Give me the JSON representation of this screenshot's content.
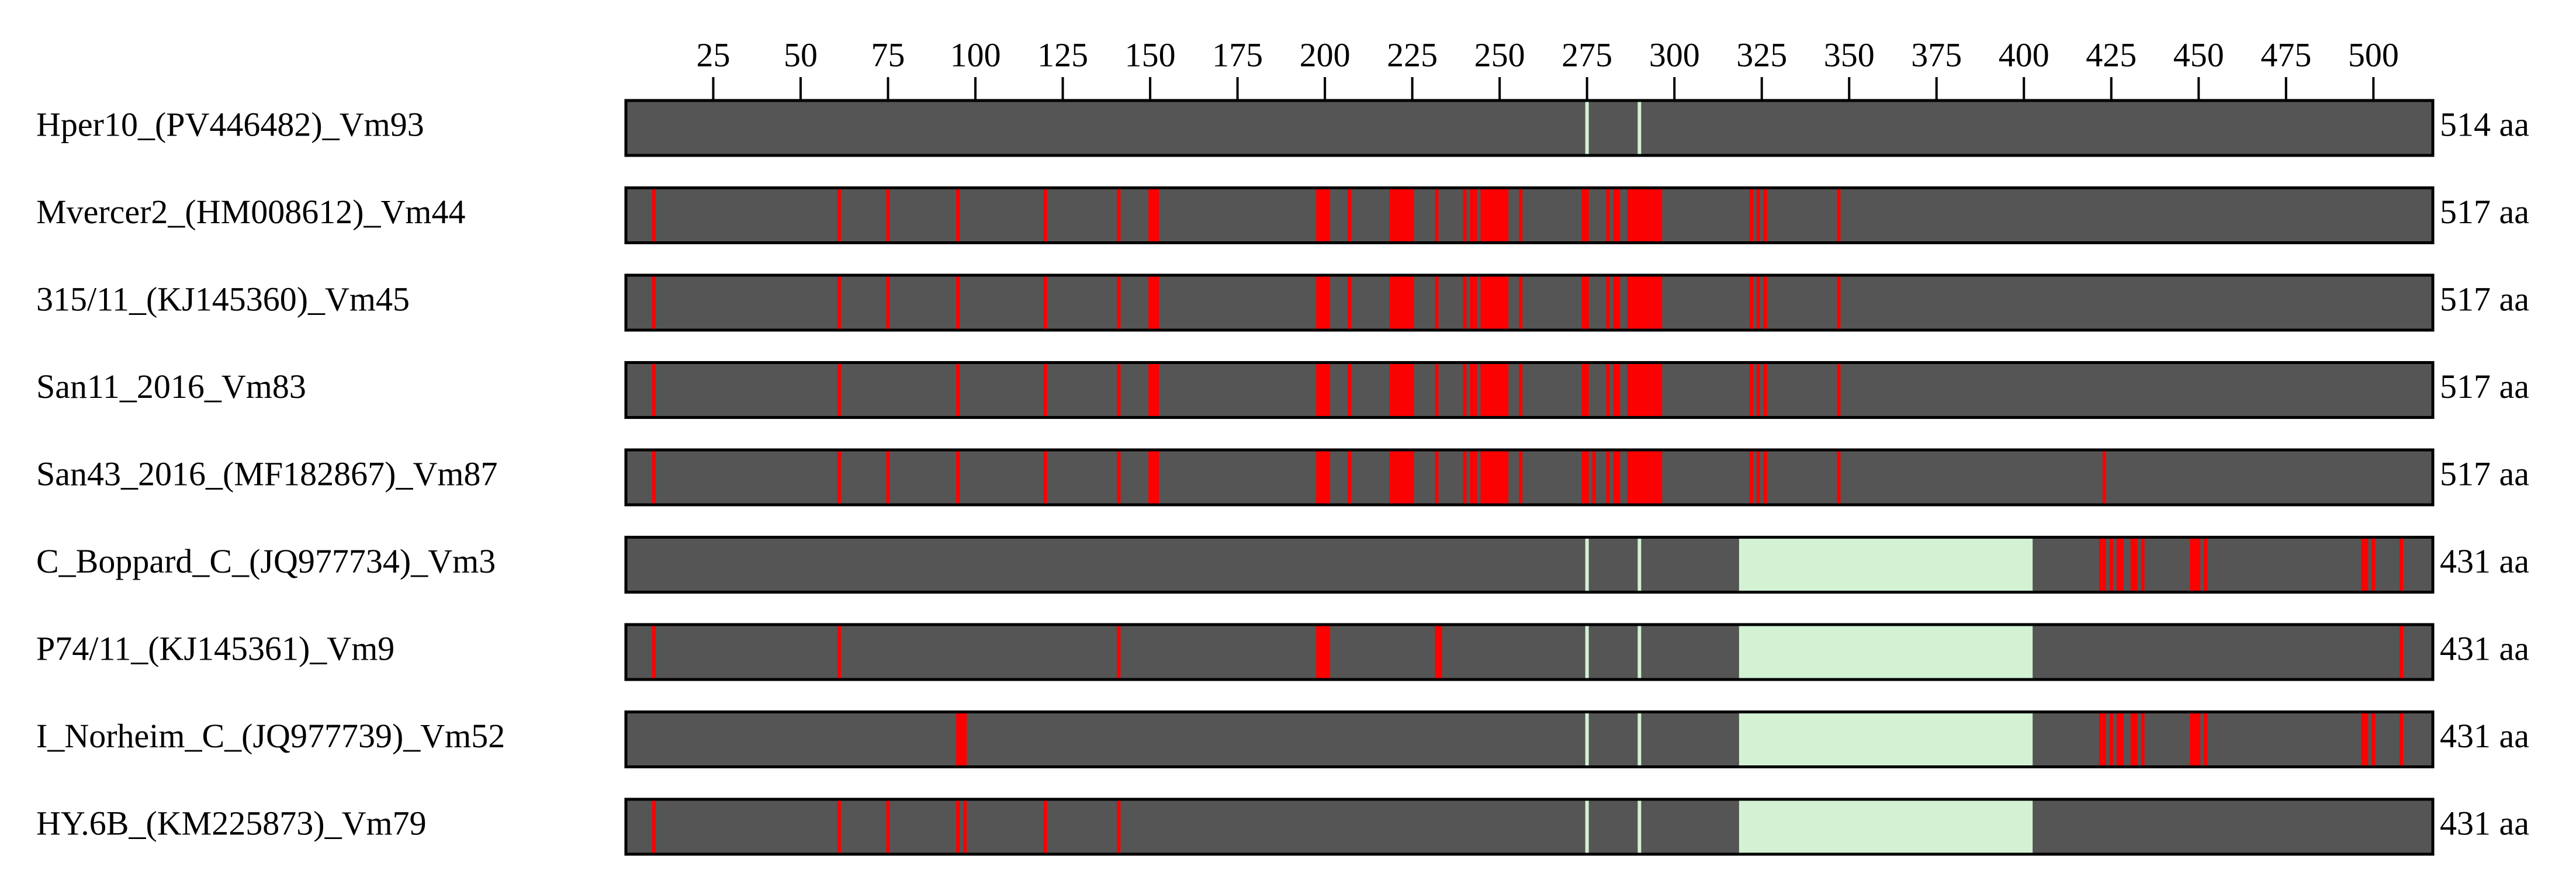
{
  "chart_data": {
    "type": "alignment",
    "xlim": [
      0,
      517
    ],
    "xticks": [
      25,
      50,
      75,
      100,
      125,
      150,
      175,
      200,
      225,
      250,
      275,
      300,
      325,
      350,
      375,
      400,
      425,
      450,
      475,
      500
    ],
    "bar_color": "#555555",
    "mutation_color": "#ff0000",
    "gap_color": "#d3f1d3",
    "tracks": [
      {
        "name": "Hper10_(PV446482)_Vm93",
        "length_label": "514 aa",
        "mutations": [],
        "gaps": [
          [
            275,
            275
          ],
          [
            290,
            290
          ]
        ]
      },
      {
        "name": "Mvercer2_(HM008612)_Vm44",
        "length_label": "517 aa",
        "mutations": [
          8,
          61,
          75,
          95,
          120,
          141,
          150,
          151,
          152,
          198,
          199,
          200,
          201,
          207,
          219,
          220,
          221,
          222,
          223,
          224,
          225,
          232,
          240,
          242,
          243,
          245,
          246,
          247,
          248,
          249,
          250,
          251,
          252,
          256,
          274,
          275,
          281,
          283,
          284,
          287,
          288,
          289,
          290,
          291,
          292,
          293,
          294,
          295,
          296,
          322,
          324,
          326,
          347
        ],
        "gaps": []
      },
      {
        "name": "315/11_(KJ145360)_Vm45",
        "length_label": "517 aa",
        "mutations": [
          8,
          61,
          75,
          95,
          120,
          141,
          150,
          151,
          152,
          198,
          199,
          200,
          201,
          207,
          219,
          220,
          221,
          222,
          223,
          224,
          225,
          232,
          240,
          242,
          243,
          245,
          246,
          247,
          248,
          249,
          250,
          251,
          252,
          256,
          274,
          275,
          281,
          283,
          284,
          287,
          288,
          289,
          290,
          291,
          292,
          293,
          294,
          295,
          296,
          322,
          324,
          326,
          347
        ],
        "gaps": []
      },
      {
        "name": "San11_2016_Vm83",
        "length_label": "517 aa",
        "mutations": [
          8,
          61,
          95,
          120,
          141,
          150,
          151,
          152,
          198,
          199,
          200,
          201,
          207,
          219,
          220,
          221,
          222,
          223,
          224,
          225,
          232,
          240,
          242,
          243,
          245,
          246,
          247,
          248,
          249,
          250,
          251,
          252,
          256,
          274,
          275,
          281,
          283,
          284,
          287,
          288,
          289,
          290,
          291,
          292,
          293,
          294,
          295,
          296,
          322,
          324,
          326,
          347
        ],
        "gaps": []
      },
      {
        "name": "San43_2016_(MF182867)_Vm87",
        "length_label": "517 aa",
        "mutations": [
          8,
          61,
          75,
          95,
          120,
          141,
          150,
          151,
          152,
          198,
          199,
          200,
          201,
          207,
          219,
          220,
          221,
          222,
          223,
          224,
          225,
          232,
          240,
          242,
          243,
          245,
          246,
          247,
          248,
          249,
          250,
          251,
          252,
          256,
          274,
          275,
          277,
          281,
          283,
          284,
          287,
          288,
          289,
          290,
          291,
          292,
          293,
          294,
          295,
          296,
          322,
          324,
          326,
          347,
          423
        ],
        "gaps": []
      },
      {
        "name": "C_Boppard_C_(JQ977734)_Vm3",
        "length_label": "431 aa",
        "mutations": [
          422,
          423,
          425,
          427,
          428,
          431,
          432,
          434,
          448,
          449,
          450,
          452,
          497,
          498,
          500,
          508
        ],
        "gaps": [
          [
            275,
            275
          ],
          [
            290,
            290
          ],
          [
            319,
            402
          ]
        ]
      },
      {
        "name": "P74/11_(KJ145361)_Vm9",
        "length_label": "431 aa",
        "mutations": [
          8,
          61,
          141,
          198,
          199,
          200,
          201,
          232,
          233,
          508
        ],
        "gaps": [
          [
            275,
            275
          ],
          [
            290,
            290
          ],
          [
            319,
            402
          ]
        ]
      },
      {
        "name": "I_Norheim_C_(JQ977739)_Vm52",
        "length_label": "431 aa",
        "mutations": [
          95,
          96,
          97,
          422,
          423,
          425,
          427,
          428,
          431,
          432,
          434,
          448,
          449,
          450,
          452,
          497,
          498,
          500,
          508
        ],
        "gaps": [
          [
            275,
            275
          ],
          [
            290,
            290
          ],
          [
            319,
            402
          ]
        ]
      },
      {
        "name": "HY.6B_(KM225873)_Vm79",
        "length_label": "431 aa",
        "mutations": [
          8,
          61,
          75,
          95,
          97,
          120,
          141
        ],
        "gaps": [
          [
            275,
            275
          ],
          [
            290,
            290
          ],
          [
            319,
            402
          ]
        ]
      }
    ]
  }
}
